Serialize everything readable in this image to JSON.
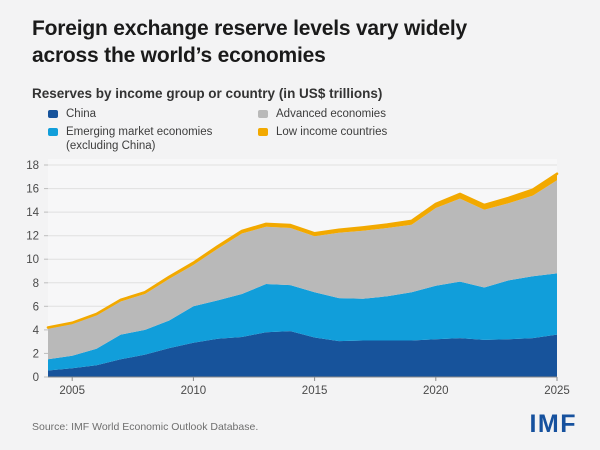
{
  "header": {
    "title_lines": [
      "Foreign exchange reserve levels vary widely",
      "across the world’s economies"
    ],
    "subtitle": "Reserves by income group or country (in US$ trillions)"
  },
  "legend": {
    "items": [
      {
        "label": "China",
        "color": "#17539B"
      },
      {
        "label": "Emerging market economies",
        "label2": "(excluding China)",
        "color": "#119EDA"
      },
      {
        "label": "Advanced economies",
        "color": "#B9B9B9"
      },
      {
        "label": "Low income countries",
        "color": "#F2A900"
      }
    ]
  },
  "chart_data": {
    "type": "area",
    "stacked": true,
    "title": "Reserves by income group or country (in US$ trillions)",
    "x": [
      2004,
      2005,
      2006,
      2007,
      2008,
      2009,
      2010,
      2011,
      2012,
      2013,
      2014,
      2015,
      2016,
      2017,
      2018,
      2019,
      2020,
      2021,
      2022,
      2023,
      2024,
      2025
    ],
    "series": [
      {
        "id": "china",
        "name": "China",
        "color": "#17539B",
        "values": [
          0.55,
          0.75,
          1.0,
          1.5,
          1.9,
          2.45,
          2.9,
          3.25,
          3.4,
          3.8,
          3.9,
          3.35,
          3.05,
          3.1,
          3.1,
          3.1,
          3.2,
          3.3,
          3.15,
          3.2,
          3.3,
          3.6
        ]
      },
      {
        "id": "emerging-ex-china",
        "name": "Emerging market economies (excluding China)",
        "color": "#119EDA",
        "values": [
          0.95,
          1.05,
          1.4,
          2.1,
          2.1,
          2.35,
          3.1,
          3.25,
          3.65,
          4.1,
          3.9,
          3.85,
          3.65,
          3.55,
          3.75,
          4.1,
          4.55,
          4.8,
          4.45,
          5.0,
          5.25,
          5.2
        ]
      },
      {
        "id": "advanced",
        "name": "Advanced economies",
        "color": "#B9B9B9",
        "values": [
          2.6,
          2.69,
          2.83,
          2.81,
          3.05,
          3.53,
          3.51,
          4.39,
          5.13,
          4.86,
          4.85,
          4.75,
          5.54,
          5.77,
          5.8,
          5.73,
          6.6,
          7.05,
          6.6,
          6.55,
          6.85,
          7.9
        ]
      },
      {
        "id": "low-income",
        "name": "Low income countries",
        "color": "#F2A900",
        "line_on_top": true,
        "values": [
          0.1,
          0.11,
          0.12,
          0.14,
          0.15,
          0.17,
          0.19,
          0.21,
          0.22,
          0.24,
          0.25,
          0.25,
          0.26,
          0.28,
          0.3,
          0.32,
          0.35,
          0.4,
          0.4,
          0.45,
          0.5,
          0.55
        ]
      }
    ],
    "totals": [
      4.2,
      4.6,
      5.35,
      6.55,
      7.2,
      8.5,
      9.7,
      11.1,
      12.4,
      13.0,
      12.9,
      12.2,
      12.5,
      12.7,
      12.95,
      13.25,
      14.7,
      15.55,
      14.6,
      15.2,
      15.9,
      17.25
    ],
    "ylim": [
      0,
      18
    ],
    "yticks": [
      0,
      2,
      4,
      6,
      8,
      10,
      12,
      14,
      16,
      18
    ],
    "xticks": [
      2005,
      2010,
      2015,
      2020,
      2025
    ],
    "grid": true,
    "legend_position": "top"
  },
  "footer": {
    "source": "Source: IMF World Economic Outlook Database.",
    "logo": "IMF"
  },
  "colors": {
    "page_background": "#F3F3F4",
    "grid_line": "#E0E0E0",
    "axis_line": "#8A8A8A",
    "imf_blue": "#16519E",
    "title_text": "#1A1A1A"
  }
}
